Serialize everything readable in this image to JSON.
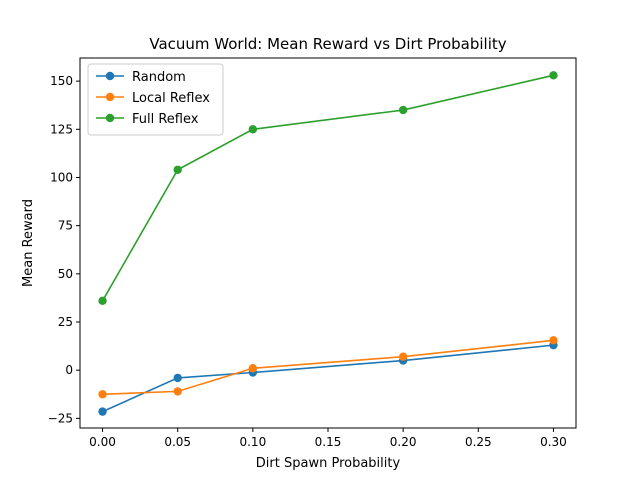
{
  "chart_data": {
    "type": "line",
    "title": "Vacuum World: Mean Reward vs Dirt Probability",
    "xlabel": "Dirt Spawn Probability",
    "ylabel": "Mean Reward",
    "x": [
      0.0,
      0.05,
      0.1,
      0.2,
      0.3
    ],
    "xlim": [
      -0.015,
      0.315
    ],
    "ylim": [
      -30,
      162
    ],
    "xticks": [
      0.0,
      0.05,
      0.1,
      0.15,
      0.2,
      0.25,
      0.3
    ],
    "xtick_labels": [
      "0.00",
      "0.05",
      "0.10",
      "0.15",
      "0.20",
      "0.25",
      "0.30"
    ],
    "yticks": [
      -25,
      0,
      25,
      50,
      75,
      100,
      125,
      150
    ],
    "ytick_labels": [
      "−25",
      "0",
      "25",
      "50",
      "75",
      "100",
      "125",
      "150"
    ],
    "grid": false,
    "legend_position": "top-left",
    "series": [
      {
        "name": "Random",
        "color": "#1f77b4",
        "values": [
          -21.5,
          -4,
          -1.2,
          5,
          13
        ]
      },
      {
        "name": "Local Reflex",
        "color": "#ff7f0e",
        "values": [
          -12.5,
          -11,
          1,
          7,
          15.5
        ]
      },
      {
        "name": "Full Reflex",
        "color": "#2ca02c",
        "values": [
          36,
          104,
          125,
          135,
          153
        ]
      }
    ]
  }
}
